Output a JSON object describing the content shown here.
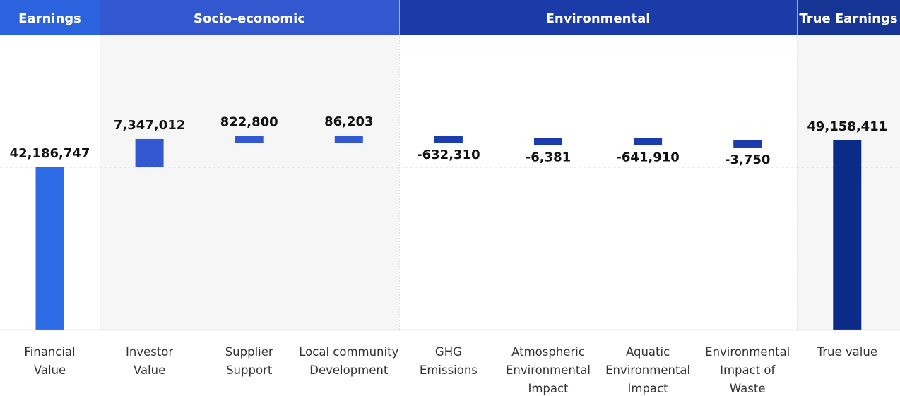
{
  "chart_data": {
    "type": "bar",
    "subtype": "waterfall",
    "groups": [
      {
        "label": "Earnings",
        "color": "#2b63de",
        "panel": "#ffffff"
      },
      {
        "label": "Socio-economic",
        "color": "#3357cf",
        "panel": "#f6f6f6"
      },
      {
        "label": "Environmental",
        "color": "#1b3ba8",
        "panel": "#ffffff"
      },
      {
        "label": "True Earnings",
        "color": "#163494",
        "panel": "#f6f6f6"
      }
    ],
    "categories": [
      {
        "label": [
          "Financial",
          "Value"
        ],
        "value": 42186747,
        "value_label": "42,186,747",
        "group": 0,
        "kind": "total",
        "color": "#2d6be6"
      },
      {
        "label": [
          "Investor",
          "Value"
        ],
        "value": 7347012,
        "value_label": "7,347,012",
        "group": 1,
        "kind": "delta",
        "color": "#3358cf"
      },
      {
        "label": [
          "Supplier",
          "Support"
        ],
        "value": 822800,
        "value_label": "822,800",
        "group": 1,
        "kind": "delta",
        "color": "#3358cf"
      },
      {
        "label": [
          "Local community",
          "Development"
        ],
        "value": 86203,
        "value_label": "86,203",
        "group": 1,
        "kind": "delta",
        "color": "#3358cf"
      },
      {
        "label": [
          "GHG",
          "Emissions"
        ],
        "value": -632310,
        "value_label": "-632,310",
        "group": 2,
        "kind": "delta",
        "color": "#1c3cae"
      },
      {
        "label": [
          "Atmospheric",
          "Environmental",
          "Impact"
        ],
        "value": -6381,
        "value_label": "-6,381",
        "group": 2,
        "kind": "delta",
        "color": "#1c3cae"
      },
      {
        "label": [
          "Aquatic",
          "Environmental",
          "Impact"
        ],
        "value": -641910,
        "value_label": "-641,910",
        "group": 2,
        "kind": "delta",
        "color": "#1c3cae"
      },
      {
        "label": [
          "Environmental",
          "Impact of",
          "Waste"
        ],
        "value": -3750,
        "value_label": "-3,750",
        "group": 2,
        "kind": "delta",
        "color": "#1c3cae"
      },
      {
        "label": [
          "True value"
        ],
        "value": 49158411,
        "value_label": "49,158,411",
        "group": 3,
        "kind": "total",
        "color": "#0c2a88"
      }
    ],
    "ylim": [
      0,
      60000000
    ],
    "reference_line": 42186747,
    "grid": false
  }
}
